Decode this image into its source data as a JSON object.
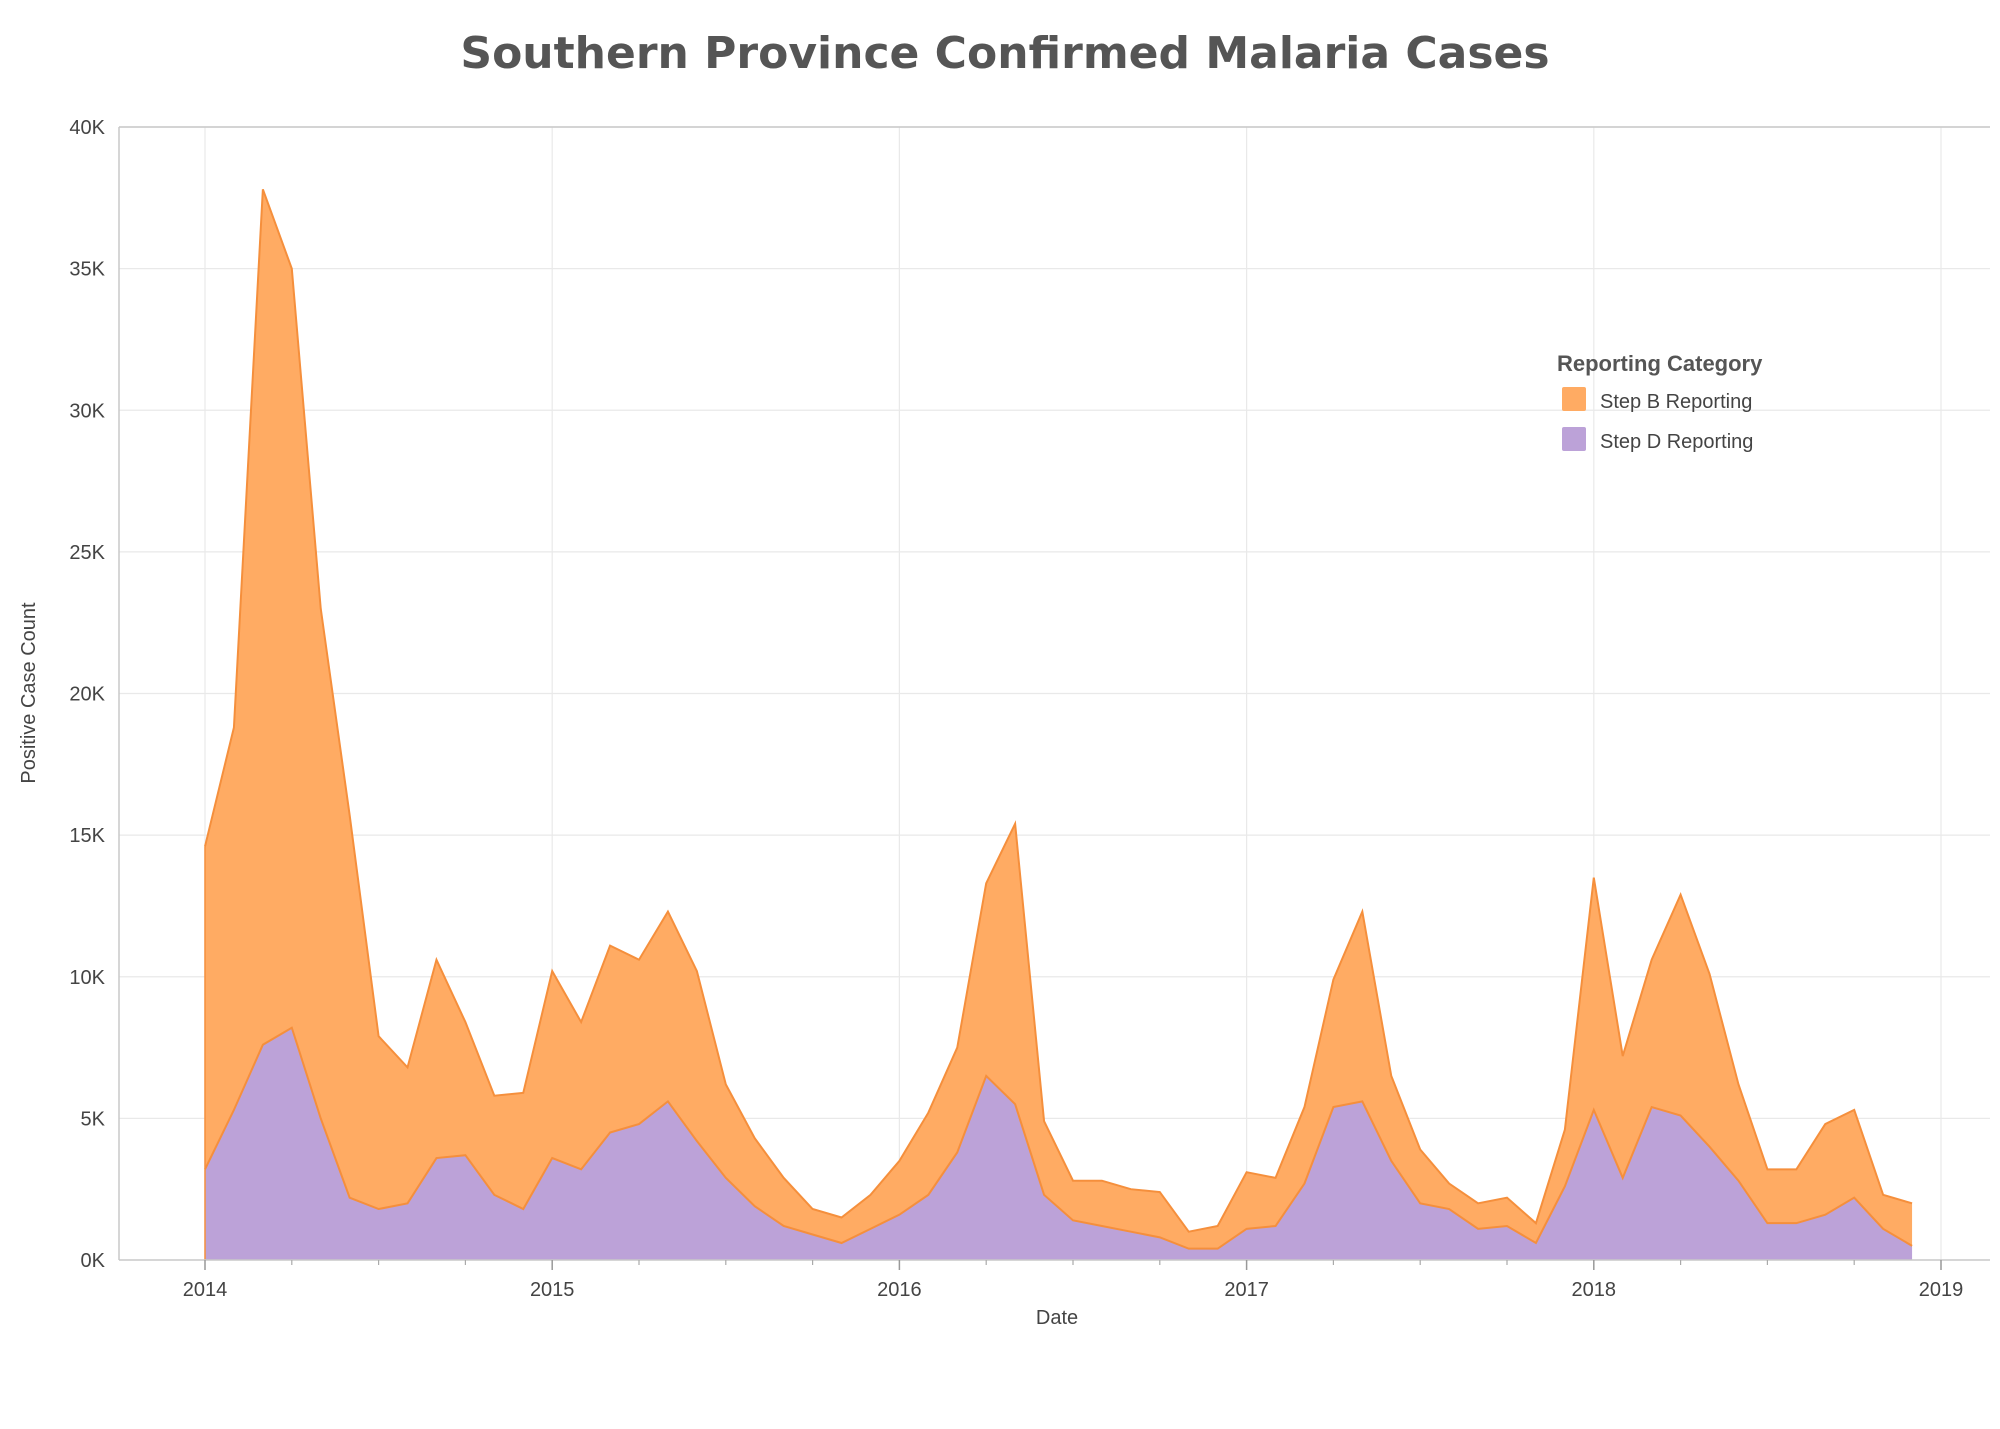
{
  "chart_data": {
    "type": "area",
    "stacked": true,
    "title": "Southern Province Confirmed Malaria Cases",
    "xlabel": "Date",
    "ylabel": "Positive Case Count",
    "x_tick_labels": [
      "2014",
      "2015",
      "2016",
      "2017",
      "2018",
      "2019"
    ],
    "y_tick_labels": [
      "0K",
      "5K",
      "10K",
      "15K",
      "20K",
      "25K",
      "30K",
      "35K",
      "40K"
    ],
    "y_ticks": [
      0,
      5000,
      10000,
      15000,
      20000,
      25000,
      30000,
      35000,
      40000
    ],
    "xlim": [
      "2013-10",
      "2019-02"
    ],
    "ylim": [
      0,
      40000
    ],
    "grid": true,
    "legend": {
      "title": "Reporting Category",
      "position": "top-right"
    },
    "x": [
      "2014-01",
      "2014-02",
      "2014-03",
      "2014-04",
      "2014-05",
      "2014-06",
      "2014-07",
      "2014-08",
      "2014-09",
      "2014-10",
      "2014-11",
      "2014-12",
      "2015-01",
      "2015-02",
      "2015-03",
      "2015-04",
      "2015-05",
      "2015-06",
      "2015-07",
      "2015-08",
      "2015-09",
      "2015-10",
      "2015-11",
      "2015-12",
      "2016-01",
      "2016-02",
      "2016-03",
      "2016-04",
      "2016-05",
      "2016-06",
      "2016-07",
      "2016-08",
      "2016-09",
      "2016-10",
      "2016-11",
      "2016-12",
      "2017-01",
      "2017-02",
      "2017-03",
      "2017-04",
      "2017-05",
      "2017-06",
      "2017-07",
      "2017-08",
      "2017-09",
      "2017-10",
      "2017-11",
      "2017-12",
      "2018-01",
      "2018-02",
      "2018-03",
      "2018-04",
      "2018-05",
      "2018-06",
      "2018-07",
      "2018-08",
      "2018-09",
      "2018-10",
      "2018-11",
      "2018-12"
    ],
    "series": [
      {
        "name": "Step B Reporting",
        "color": "#ffab63",
        "stroke": "#f58f3c",
        "values": [
          11400,
          13500,
          30200,
          26800,
          18000,
          13500,
          6100,
          4800,
          7000,
          4700,
          3500,
          4100,
          6600,
          5200,
          6600,
          5800,
          6700,
          6000,
          3300,
          2400,
          1700,
          900,
          900,
          1200,
          1900,
          2900,
          3700,
          6800,
          9900,
          2600,
          1400,
          1600,
          1500,
          1600,
          600,
          800,
          2000,
          1700,
          2700,
          4500,
          6700,
          3000,
          1900,
          900,
          900,
          1000,
          700,
          2000,
          8200,
          4300,
          5200,
          7800,
          6100,
          3400,
          1900,
          1900,
          3200,
          3100,
          1200,
          1500
        ]
      },
      {
        "name": "Step D Reporting",
        "color": "#bca2d8",
        "stroke": "#f58f3c",
        "values": [
          3200,
          5300,
          7600,
          8200,
          5000,
          2200,
          1800,
          2000,
          3600,
          3700,
          2300,
          1800,
          3600,
          3200,
          4500,
          4800,
          5600,
          4200,
          2900,
          1900,
          1200,
          900,
          600,
          1100,
          1600,
          2300,
          3800,
          6500,
          5500,
          2300,
          1400,
          1200,
          1000,
          800,
          400,
          400,
          1100,
          1200,
          2700,
          5400,
          5600,
          3500,
          2000,
          1800,
          1100,
          1200,
          600,
          2600,
          5300,
          2900,
          5400,
          5100,
          4000,
          2800,
          1300,
          1300,
          1600,
          2200,
          1100,
          500
        ]
      }
    ]
  }
}
